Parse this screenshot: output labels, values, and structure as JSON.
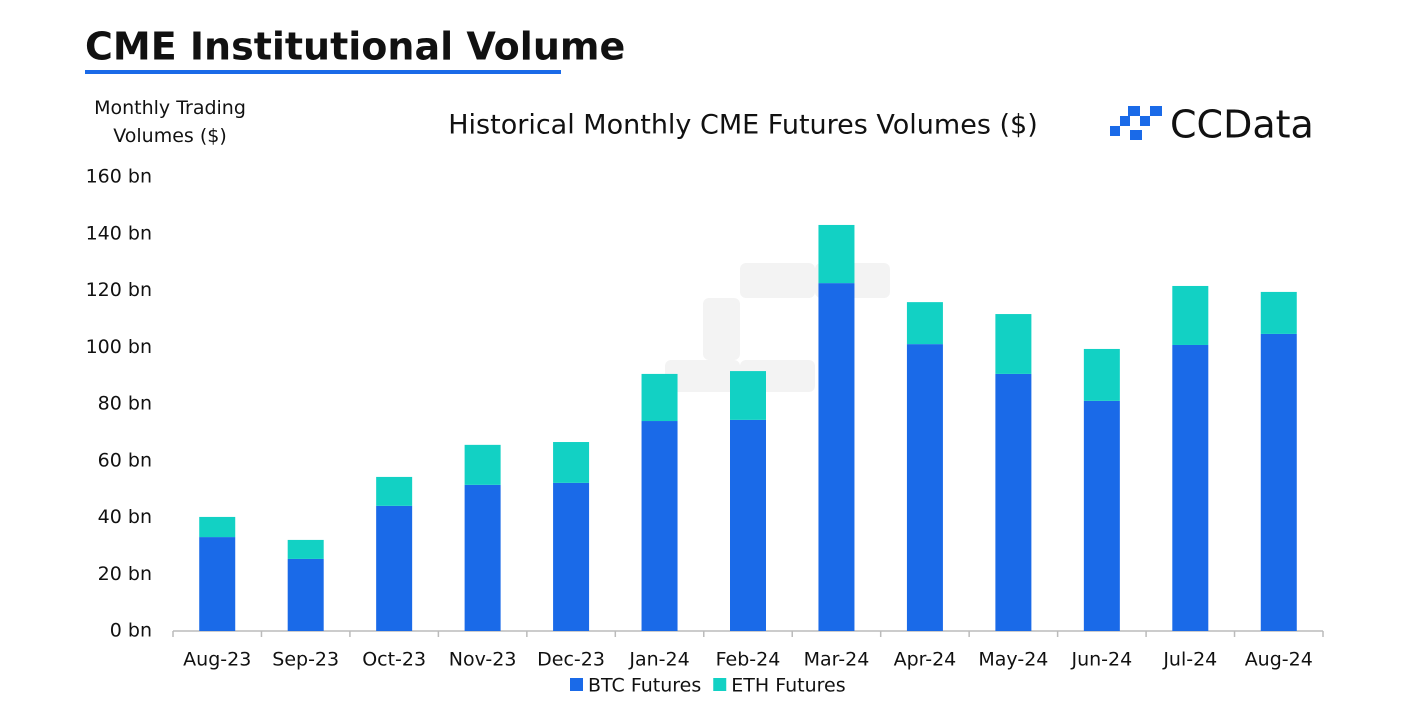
{
  "header": {
    "title": "CME Institutional Volume",
    "brand": "CCData"
  },
  "chart_data": {
    "type": "stacked-bar",
    "title": "Historical Monthly CME Futures Volumes ($)",
    "y_label": "Monthly Trading Volumes ($)",
    "categories": [
      "Aug-23",
      "Sep-23",
      "Oct-23",
      "Nov-23",
      "Dec-23",
      "Jan-24",
      "Feb-24",
      "Mar-24",
      "Apr-24",
      "May-24",
      "Jun-24",
      "Jul-24",
      "Aug-24"
    ],
    "series": [
      {
        "name": "BTC Futures",
        "color": "#1a6ae8",
        "values": [
          33.1,
          25.4,
          44.1,
          51.5,
          52.2,
          74.0,
          74.4,
          122.6,
          101.1,
          90.6,
          81.1,
          100.8,
          104.7
        ]
      },
      {
        "name": "ETH Futures",
        "color": "#12d1c4",
        "values": [
          7.1,
          6.7,
          10.2,
          14.1,
          14.4,
          16.6,
          17.2,
          20.5,
          14.8,
          21.1,
          18.3,
          20.8,
          14.8
        ]
      }
    ],
    "ylim": [
      0,
      160
    ],
    "yticks": [
      {
        "value": 0,
        "label": "0 bn"
      },
      {
        "value": 20,
        "label": "20 bn"
      },
      {
        "value": 40,
        "label": "40 bn"
      },
      {
        "value": 60,
        "label": "60 bn"
      },
      {
        "value": 80,
        "label": "80 bn"
      },
      {
        "value": 100,
        "label": "100 bn"
      },
      {
        "value": 120,
        "label": "120 bn"
      },
      {
        "value": 140,
        "label": "140 bn"
      },
      {
        "value": 160,
        "label": "160 bn"
      }
    ],
    "grid": false,
    "legend": "bottom"
  }
}
